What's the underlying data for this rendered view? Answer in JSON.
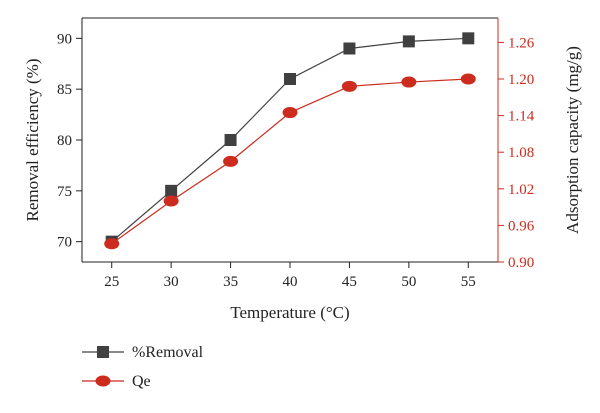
{
  "chart_data": {
    "type": "line",
    "title": "",
    "x": [
      25,
      30,
      35,
      40,
      45,
      50,
      55
    ],
    "xlabel": "Temperature (°C)",
    "xlim": [
      22.5,
      57.5
    ],
    "xticks": [
      "25",
      "30",
      "35",
      "40",
      "45",
      "50",
      "55"
    ],
    "y_left": {
      "label": "Removal efficiency (%)",
      "lim": [
        68,
        92
      ],
      "ticks": [
        "70",
        "75",
        "80",
        "85",
        "90"
      ],
      "color": "#222222"
    },
    "y_right": {
      "label": "Adsorption capacity (mg/g)",
      "lim": [
        0.9,
        1.3
      ],
      "ticks": [
        "0.90",
        "0.96",
        "1.02",
        "1.08",
        "1.14",
        "1.20",
        "1.26"
      ],
      "color": "#cc2b1d"
    },
    "grid": false,
    "legend_position": "bottom-left",
    "series": [
      {
        "name": "%Removal",
        "axis": "left",
        "marker": "square",
        "color": "#404040",
        "values": [
          70,
          75,
          80,
          86,
          89,
          89.7,
          90
        ]
      },
      {
        "name": "Qe",
        "axis": "right",
        "marker": "circle",
        "color": "#cc2b1d",
        "values": [
          0.93,
          1.0,
          1.065,
          1.145,
          1.188,
          1.195,
          1.2
        ]
      }
    ]
  }
}
